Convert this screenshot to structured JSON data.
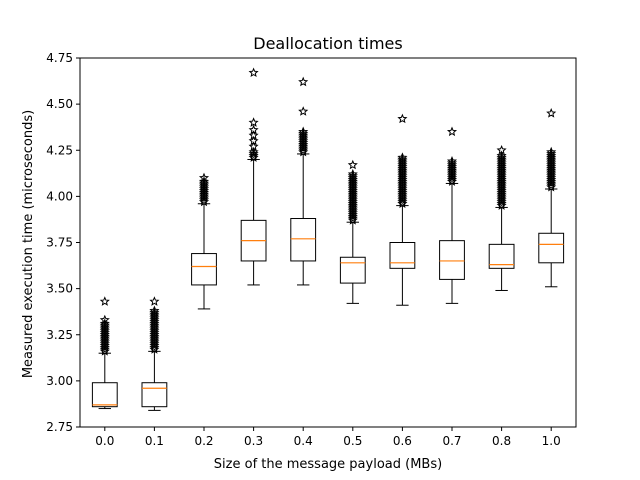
{
  "chart_data": {
    "type": "box",
    "title": "Deallocation times",
    "xlabel": "Size of the message payload (MBs)",
    "ylabel": "Measured execution time (microseconds)",
    "categories": [
      "0.0",
      "0.1",
      "0.2",
      "0.3",
      "0.4",
      "0.5",
      "0.6",
      "0.7",
      "0.8",
      "1.0"
    ],
    "ylim": [
      2.75,
      4.75
    ],
    "yticks": [
      "2.75",
      "3.00",
      "3.25",
      "3.50",
      "3.75",
      "4.00",
      "4.25",
      "4.50",
      "4.75"
    ],
    "grid": false,
    "flier_marker": "star",
    "colors": {
      "box": "#000000",
      "median": "#ff7f0e",
      "background": "#ffffff"
    },
    "boxes": [
      {
        "whislo": 2.85,
        "q1": 2.86,
        "med": 2.87,
        "q3": 2.99,
        "whishi": 3.15,
        "fliers": [
          3.16,
          3.17,
          3.18,
          3.19,
          3.2,
          3.21,
          3.22,
          3.23,
          3.24,
          3.25,
          3.26,
          3.27,
          3.28,
          3.29,
          3.3,
          3.31,
          3.33,
          3.43
        ]
      },
      {
        "whislo": 2.84,
        "q1": 2.86,
        "med": 2.96,
        "q3": 2.99,
        "whishi": 3.16,
        "fliers": [
          3.17,
          3.18,
          3.19,
          3.2,
          3.21,
          3.22,
          3.23,
          3.24,
          3.25,
          3.26,
          3.27,
          3.28,
          3.29,
          3.3,
          3.31,
          3.32,
          3.33,
          3.34,
          3.35,
          3.36,
          3.37,
          3.38,
          3.43
        ]
      },
      {
        "whislo": 3.39,
        "q1": 3.52,
        "med": 3.62,
        "q3": 3.69,
        "whishi": 3.96,
        "fliers": [
          3.97,
          3.98,
          3.99,
          4.0,
          4.01,
          4.02,
          4.03,
          4.04,
          4.05,
          4.06,
          4.07,
          4.08,
          4.1
        ]
      },
      {
        "whislo": 3.52,
        "q1": 3.65,
        "med": 3.76,
        "q3": 3.87,
        "whishi": 4.2,
        "fliers": [
          4.21,
          4.22,
          4.23,
          4.24,
          4.27,
          4.3,
          4.33,
          4.36,
          4.4,
          4.67
        ]
      },
      {
        "whislo": 3.52,
        "q1": 3.65,
        "med": 3.77,
        "q3": 3.88,
        "whishi": 4.23,
        "fliers": [
          4.24,
          4.25,
          4.26,
          4.27,
          4.28,
          4.29,
          4.3,
          4.31,
          4.32,
          4.33,
          4.34,
          4.35,
          4.46,
          4.62
        ]
      },
      {
        "whislo": 3.42,
        "q1": 3.53,
        "med": 3.64,
        "q3": 3.67,
        "whishi": 3.86,
        "fliers": [
          3.87,
          3.88,
          3.89,
          3.9,
          3.91,
          3.92,
          3.93,
          3.94,
          3.95,
          3.96,
          3.97,
          3.98,
          3.99,
          4.0,
          4.01,
          4.02,
          4.03,
          4.04,
          4.05,
          4.06,
          4.07,
          4.08,
          4.09,
          4.1,
          4.11,
          4.12,
          4.17
        ]
      },
      {
        "whislo": 3.41,
        "q1": 3.61,
        "med": 3.64,
        "q3": 3.75,
        "whishi": 3.95,
        "fliers": [
          3.96,
          3.97,
          3.98,
          3.99,
          4.0,
          4.01,
          4.02,
          4.03,
          4.04,
          4.05,
          4.06,
          4.07,
          4.08,
          4.09,
          4.1,
          4.11,
          4.12,
          4.13,
          4.14,
          4.15,
          4.16,
          4.17,
          4.18,
          4.19,
          4.2,
          4.21,
          4.42
        ]
      },
      {
        "whislo": 3.42,
        "q1": 3.55,
        "med": 3.65,
        "q3": 3.76,
        "whishi": 4.07,
        "fliers": [
          4.08,
          4.09,
          4.1,
          4.11,
          4.12,
          4.13,
          4.14,
          4.15,
          4.16,
          4.17,
          4.18,
          4.19,
          4.35
        ]
      },
      {
        "whislo": 3.49,
        "q1": 3.61,
        "med": 3.63,
        "q3": 3.74,
        "whishi": 3.94,
        "fliers": [
          3.95,
          3.96,
          3.97,
          3.98,
          3.99,
          4.0,
          4.01,
          4.02,
          4.03,
          4.04,
          4.05,
          4.06,
          4.07,
          4.08,
          4.09,
          4.1,
          4.11,
          4.12,
          4.13,
          4.14,
          4.15,
          4.16,
          4.17,
          4.18,
          4.19,
          4.2,
          4.21,
          4.22,
          4.25
        ]
      },
      {
        "whislo": 3.51,
        "q1": 3.64,
        "med": 3.74,
        "q3": 3.8,
        "whishi": 4.04,
        "fliers": [
          4.05,
          4.06,
          4.07,
          4.08,
          4.09,
          4.1,
          4.11,
          4.12,
          4.13,
          4.14,
          4.15,
          4.16,
          4.17,
          4.18,
          4.19,
          4.2,
          4.21,
          4.22,
          4.23,
          4.24,
          4.45
        ]
      }
    ]
  }
}
